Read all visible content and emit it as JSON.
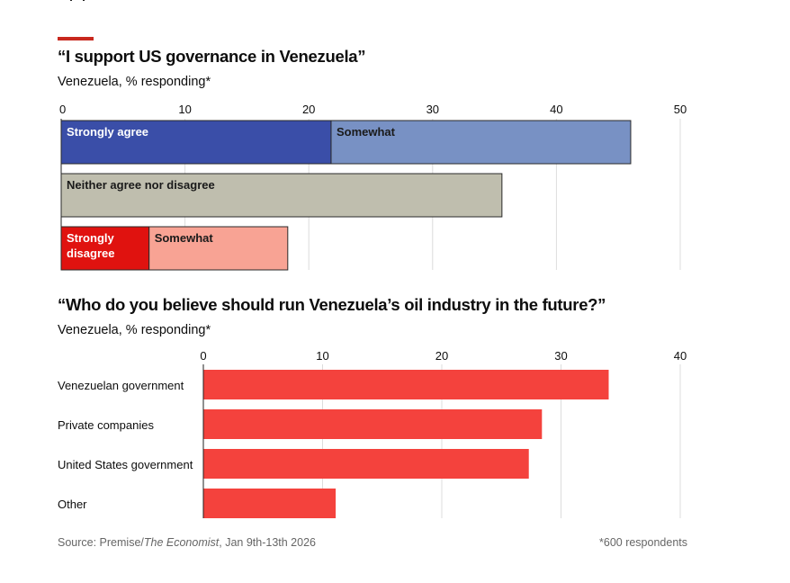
{
  "chart_data": [
    {
      "type": "bar",
      "stacked": true,
      "orientation": "horizontal",
      "title": "“I support US governance in Venezuela”",
      "subtitle": "Venezuela, % responding*",
      "xlabel": "",
      "ylabel": "",
      "xlim": [
        0,
        50
      ],
      "xticks": [
        "0",
        "10",
        "20",
        "30",
        "40",
        "50"
      ],
      "xtick_values": [
        0,
        10,
        20,
        30,
        40,
        50
      ],
      "grid": true,
      "rows": [
        {
          "name": "agree",
          "segments": [
            {
              "label": "Strongly agree",
              "value": 21.8,
              "color": "#3a4ea8",
              "text_color": "#ffffff"
            },
            {
              "label": "Somewhat",
              "value": 24.2,
              "color": "#7891c4",
              "text_color": "#1a1a1a"
            }
          ]
        },
        {
          "name": "neither",
          "segments": [
            {
              "label": "Neither agree nor disagree",
              "value": 35.6,
              "color": "#bfbeae",
              "text_color": "#1a1a1a"
            }
          ]
        },
        {
          "name": "disagree",
          "segments": [
            {
              "label": "Strongly\ndisagree",
              "value": 7.1,
              "color": "#e0120f",
              "text_color": "#ffffff"
            },
            {
              "label": "Somewhat",
              "value": 11.2,
              "color": "#f8a394",
              "text_color": "#1a1a1a"
            }
          ]
        }
      ]
    },
    {
      "type": "bar",
      "orientation": "horizontal",
      "title": "“Who do you believe should run Venezuela’s oil industry in the future?”",
      "subtitle": "Venezuela, % responding*",
      "xlabel": "",
      "ylabel": "",
      "xlim": [
        0,
        40
      ],
      "xticks": [
        "0",
        "10",
        "20",
        "30",
        "40"
      ],
      "xtick_values": [
        0,
        10,
        20,
        30,
        40
      ],
      "grid": true,
      "categories": [
        "Venezuelan government",
        "Private companies",
        "United States government",
        "Other"
      ],
      "values": [
        34.0,
        28.4,
        27.3,
        11.1
      ],
      "color": "#f4423d"
    }
  ],
  "accent_color": "#c8281e",
  "footer": {
    "source_prefix": "Source: Premise/",
    "source_italic": "The Economist",
    "source_suffix": ", Jan 9th-13th 2026",
    "note": "*600 respondents"
  }
}
